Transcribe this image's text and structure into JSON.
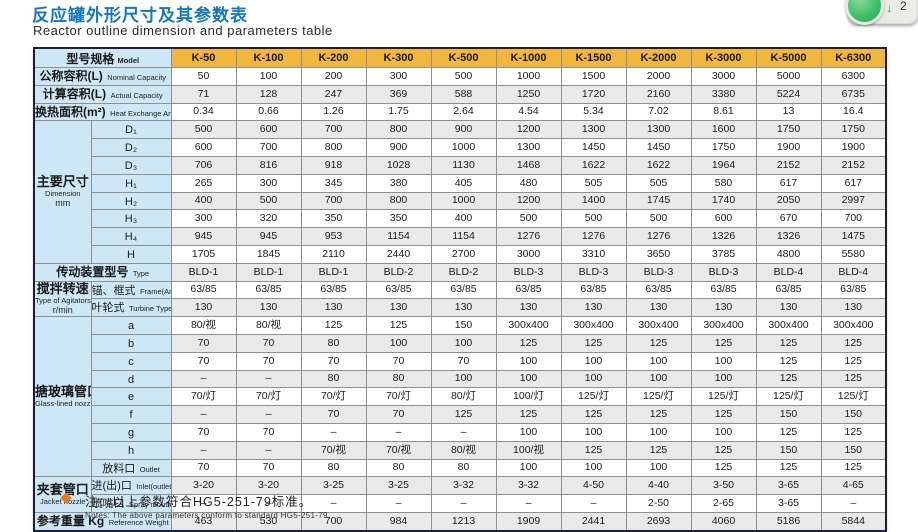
{
  "page": {
    "title_zh": "反应罐外形尺寸及其参数表",
    "title_en": "Reactor outline dimension and parameters table"
  },
  "badge": {
    "arrow": "↓",
    "count": "2",
    "circle_color": "#3cbd63"
  },
  "table": {
    "corner_label_zh": "型号规格",
    "corner_label_en": "Model",
    "models": [
      "K-50",
      "K-100",
      "K-200",
      "K-300",
      "K-500",
      "K-1000",
      "K-1500",
      "K-2000",
      "K-3000",
      "K-5000",
      "K-6300"
    ],
    "rows": [
      {
        "type": "simple",
        "zh": "公称容积(L)",
        "en": "Nominal Capacity",
        "values": [
          "50",
          "100",
          "200",
          "300",
          "500",
          "1000",
          "1500",
          "2000",
          "3000",
          "5000",
          "6300"
        ]
      },
      {
        "type": "simple",
        "zh": "计算容积(L)",
        "en": "Actual Capacity",
        "values": [
          "71",
          "128",
          "247",
          "369",
          "588",
          "1250",
          "1720",
          "2160",
          "3380",
          "5224",
          "6735"
        ]
      },
      {
        "type": "simple",
        "zh": "换热面积(m²)",
        "en": "Heat Exchange Area",
        "values": [
          "0.34",
          "0.66",
          "1.26",
          "1.75",
          "2.64",
          "4.54",
          "5.34",
          "7.02",
          "8.61",
          "13",
          "16.4"
        ]
      },
      {
        "type": "group",
        "zh": "主要尺寸",
        "en": "Dimension",
        "en2": "mm",
        "rows": [
          {
            "zh": "D₁",
            "values": [
              "500",
              "600",
              "700",
              "800",
              "900",
              "1200",
              "1300",
              "1300",
              "1600",
              "1750",
              "1750"
            ]
          },
          {
            "zh": "D₂",
            "values": [
              "600",
              "700",
              "800",
              "900",
              "1000",
              "1300",
              "1450",
              "1450",
              "1750",
              "1900",
              "1900"
            ]
          },
          {
            "zh": "D₃",
            "values": [
              "706",
              "816",
              "918",
              "1028",
              "1130",
              "1468",
              "1622",
              "1622",
              "1964",
              "2152",
              "2152"
            ]
          },
          {
            "zh": "H₁",
            "values": [
              "265",
              "300",
              "345",
              "380",
              "405",
              "480",
              "505",
              "505",
              "580",
              "617",
              "617"
            ]
          },
          {
            "zh": "H₂",
            "values": [
              "400",
              "500",
              "700",
              "800",
              "1000",
              "1200",
              "1400",
              "1745",
              "1740",
              "2050",
              "2997"
            ]
          },
          {
            "zh": "H₃",
            "values": [
              "300",
              "320",
              "350",
              "350",
              "400",
              "500",
              "500",
              "500",
              "600",
              "670",
              "700"
            ]
          },
          {
            "zh": "H₄",
            "values": [
              "945",
              "945",
              "953",
              "1154",
              "1154",
              "1276",
              "1276",
              "1276",
              "1326",
              "1326",
              "1475"
            ]
          },
          {
            "zh": "H",
            "values": [
              "1705",
              "1845",
              "2110",
              "2440",
              "2700",
              "3000",
              "3310",
              "3650",
              "3785",
              "4800",
              "5580"
            ]
          }
        ]
      },
      {
        "type": "simple",
        "zh": "传动装置型号",
        "en": "Type",
        "values": [
          "BLD-1",
          "BLD-1",
          "BLD-1",
          "BLD-2",
          "BLD-2",
          "BLD-3",
          "BLD-3",
          "BLD-3",
          "BLD-3",
          "BLD-4",
          "BLD-4"
        ]
      },
      {
        "type": "group",
        "zh": "搅拌转速",
        "en": "Type of Agitators",
        "en2": "r/min",
        "rows": [
          {
            "zh": "锚、框式",
            "en": "Frame(Anchor)Type",
            "values": [
              "63/85",
              "63/85",
              "63/85",
              "63/85",
              "63/85",
              "63/85",
              "63/85",
              "63/85",
              "63/85",
              "63/85",
              "63/85"
            ]
          },
          {
            "zh": "叶轮式",
            "en": "Turbine Type",
            "values": [
              "130",
              "130",
              "130",
              "130",
              "130",
              "130",
              "130",
              "130",
              "130",
              "130",
              "130"
            ]
          }
        ]
      },
      {
        "type": "group",
        "zh": "搪玻璃管口",
        "en": "Glass-lined nozzle",
        "rows": [
          {
            "zh": "a",
            "values": [
              "80/视",
              "80/视",
              "125",
              "125",
              "150",
              "300x400",
              "300x400",
              "300x400",
              "300x400",
              "300x400",
              "300x400"
            ]
          },
          {
            "zh": "b",
            "values": [
              "70",
              "70",
              "80",
              "100",
              "100",
              "125",
              "125",
              "125",
              "125",
              "125",
              "125"
            ]
          },
          {
            "zh": "c",
            "values": [
              "70",
              "70",
              "70",
              "70",
              "70",
              "100",
              "100",
              "100",
              "100",
              "125",
              "125"
            ]
          },
          {
            "zh": "d",
            "values": [
              "–",
              "–",
              "80",
              "80",
              "100",
              "100",
              "100",
              "100",
              "100",
              "125",
              "125"
            ]
          },
          {
            "zh": "e",
            "values": [
              "70/灯",
              "70/灯",
              "70/灯",
              "70/灯",
              "80/灯",
              "100/灯",
              "125/灯",
              "125/灯",
              "125/灯",
              "125/灯",
              "125/灯"
            ]
          },
          {
            "zh": "f",
            "values": [
              "–",
              "–",
              "70",
              "70",
              "125",
              "125",
              "125",
              "125",
              "125",
              "150",
              "150"
            ]
          },
          {
            "zh": "g",
            "values": [
              "70",
              "70",
              "–",
              "–",
              "–",
              "100",
              "100",
              "100",
              "100",
              "125",
              "125"
            ]
          },
          {
            "zh": "h",
            "values": [
              "–",
              "–",
              "70/视",
              "70/视",
              "80/视",
              "100/视",
              "125",
              "125",
              "125",
              "150",
              "150"
            ]
          },
          {
            "zh": "放料口",
            "en": "Outlet",
            "values": [
              "70",
              "70",
              "80",
              "80",
              "80",
              "100",
              "100",
              "100",
              "125",
              "125",
              "125"
            ]
          }
        ]
      },
      {
        "type": "group",
        "zh": "夹套管口",
        "en": "Jacket nozzle",
        "rows": [
          {
            "zh": "进(出)口",
            "en": "Inlet(outlet)",
            "values": [
              "3-20",
              "3-20",
              "3-25",
              "3-25",
              "3-32",
              "3-32",
              "4-50",
              "4-40",
              "3-50",
              "3-65",
              "4-65"
            ]
          },
          {
            "zh": "喷嘴口",
            "en": "Spray mouth",
            "values": [
              "–",
              "–",
              "–",
              "–",
              "–",
              "–",
              "–",
              "2-50",
              "2-65",
              "3-65",
              "–"
            ]
          }
        ]
      },
      {
        "type": "simple",
        "zh": "参考重量 Kg",
        "en": "Reference Weight",
        "values": [
          "463",
          "530",
          "700",
          "984",
          "1213",
          "1909",
          "2441",
          "2693",
          "4060",
          "5186",
          "5844"
        ]
      }
    ]
  },
  "note": {
    "zh": "注：以上参数符合HG5-251-79标准。",
    "en": "Notes: The above parameters conform to standard HG5-251-79."
  }
}
